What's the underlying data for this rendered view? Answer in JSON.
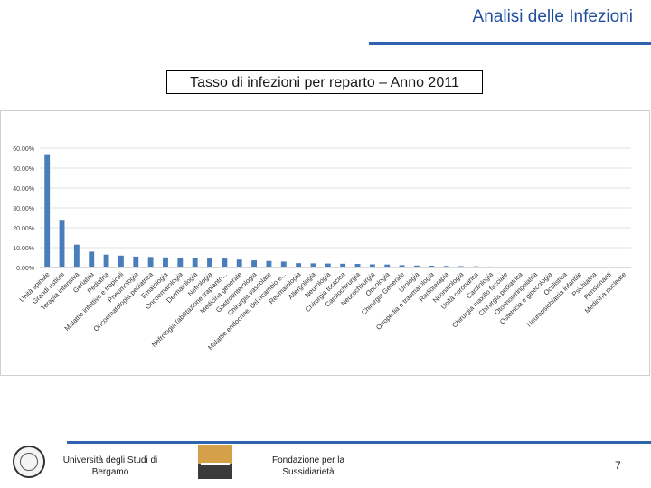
{
  "header": {
    "title": "Analisi delle Infezioni"
  },
  "footer": {
    "university": "Università degli Studi di Bergamo",
    "foundation": "Fondazione per la Sussidiarietà",
    "page_number": "7"
  },
  "colors": {
    "accent": "#2f63ad",
    "bar": "#4a7ebb",
    "grid": "#d9d9d9"
  },
  "chart_data": {
    "type": "bar",
    "title": "Tasso di infezioni per reparto – Anno 2011",
    "xlabel": "",
    "ylabel": "",
    "ylim": [
      0,
      60
    ],
    "yticks": [
      "0.00%",
      "10.00%",
      "20.00%",
      "30.00%",
      "40.00%",
      "50.00%",
      "60.00%"
    ],
    "grid": true,
    "categories": [
      "Unità spinale",
      "Grandi ustioni",
      "Terapia intensiva",
      "Geriatria",
      "Pediatria",
      "Malattie infettive e tropicali",
      "Pneumologia",
      "Oncoematologia pediatrica",
      "Ematologia",
      "Oncoematologia",
      "Dermatologia",
      "Nefrologia",
      "Nefrologia (abilitazione trapianto...",
      "Medicina generale",
      "Gastroenterologia",
      "Chirurgia vascolare",
      "Malattie endocrine, del ricambio e...",
      "Reumatologia",
      "Allergologia",
      "Neurologia",
      "Chirurgia toracica",
      "Cardiochirurgia",
      "Neurochirurgia",
      "Oncologia",
      "Chirurgia Generale",
      "Urologia",
      "Ortopedia e traumatologia",
      "Radioterapia",
      "Neonatologia",
      "Unità coronarica",
      "Cardiologia",
      "Chirurgia maxillo facciale",
      "Chirurgia pediatrica",
      "Otorinolaringoiatria",
      "Ostetricia e ginecologia",
      "Oculistica",
      "Neuropsichiatria infantile",
      "Psichiatria",
      "Pensionanti",
      "Medicina nucleare"
    ],
    "values": [
      57.0,
      24.0,
      11.5,
      8.0,
      6.5,
      6.0,
      5.5,
      5.3,
      5.1,
      5.0,
      4.9,
      4.8,
      4.5,
      4.0,
      3.6,
      3.3,
      3.0,
      2.2,
      2.1,
      2.0,
      1.9,
      1.8,
      1.6,
      1.5,
      1.2,
      1.0,
      0.9,
      0.8,
      0.7,
      0.6,
      0.5,
      0.45,
      0.35,
      0.25,
      0.2,
      0.1,
      0.05,
      0.0,
      0.0,
      0.0
    ]
  }
}
